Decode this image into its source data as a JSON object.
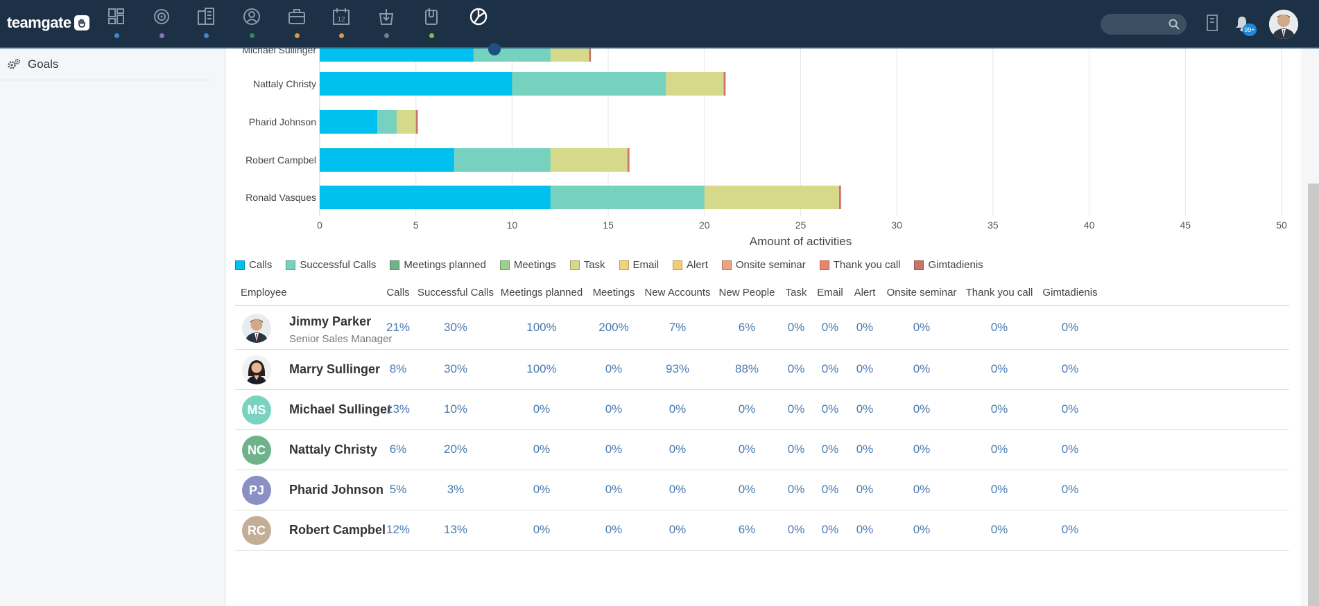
{
  "app": {
    "logo": "teamgate",
    "notifications": "99+"
  },
  "nav": {
    "icons": [
      {
        "name": "dashboard-icon",
        "dot": "#3f86d6"
      },
      {
        "name": "target-icon",
        "dot": "#8a74b8"
      },
      {
        "name": "companies-icon",
        "dot": "#3f86d6"
      },
      {
        "name": "people-icon",
        "dot": "#2e8a5b"
      },
      {
        "name": "deals-icon",
        "dot": "#d99a3e"
      },
      {
        "name": "calendar-icon",
        "dot": "#d99a3e"
      },
      {
        "name": "import-icon",
        "dot": "#7b7d85"
      },
      {
        "name": "documents-icon",
        "dot": "#7bbf4a"
      },
      {
        "name": "reports-icon",
        "dot": ""
      }
    ],
    "calendar_day": "12"
  },
  "sidebar": {
    "items": [
      {
        "label": "Goals",
        "icon": "gears-icon"
      }
    ]
  },
  "chart_data": {
    "type": "bar",
    "orientation": "horizontal",
    "stacked": true,
    "categories": [
      "Michael Sullinger",
      "Nattaly Christy",
      "Pharid Johnson",
      "Robert Campbel",
      "Ronald Vasques"
    ],
    "category_labels": [
      "Michael Sullinger",
      "Nattaly Christy",
      "Pharid Johnson",
      "Robert Campbel",
      "Ronald Vasques"
    ],
    "series": [
      {
        "name": "Calls",
        "color": "#00c0ef",
        "values": [
          8,
          10,
          3,
          7,
          12
        ]
      },
      {
        "name": "Successful Calls",
        "color": "#76d1be",
        "values": [
          4,
          8,
          1,
          5,
          8
        ]
      },
      {
        "name": "Meetings planned",
        "color": "#6fb38a",
        "values": [
          0,
          0,
          0,
          0,
          0
        ]
      },
      {
        "name": "Meetings",
        "color": "#9ccf8f",
        "values": [
          0,
          0,
          0,
          0,
          0
        ]
      },
      {
        "name": "Task",
        "color": "#d7d98a",
        "values": [
          2,
          3,
          1,
          4,
          7
        ]
      },
      {
        "name": "Email",
        "color": "#f3d27d",
        "values": [
          0,
          0,
          0,
          0,
          0
        ]
      },
      {
        "name": "Alert",
        "color": "#f1ce73",
        "values": [
          0,
          0,
          0,
          0,
          0
        ]
      },
      {
        "name": "Onsite seminar",
        "color": "#eda383",
        "values": [
          0,
          0,
          0,
          0,
          0
        ]
      },
      {
        "name": "Thank you call",
        "color": "#e8856e",
        "values": [
          0,
          0,
          0,
          0,
          0
        ]
      },
      {
        "name": "Gimtadienis",
        "color": "#c9736a",
        "values": [
          0.1,
          0.1,
          0.1,
          0.1,
          0.1
        ]
      }
    ],
    "xlim": [
      0,
      50
    ],
    "xticks": [
      "0",
      "5",
      "10",
      "15",
      "20",
      "25",
      "30",
      "35",
      "40",
      "45",
      "50"
    ],
    "xlabel": "Amount of activities",
    "grid": true,
    "legend_position": "bottom-left"
  },
  "table": {
    "columns": [
      "Employee",
      "Calls",
      "Successful Calls",
      "Meetings planned",
      "Meetings",
      "New Accounts",
      "New People",
      "Task",
      "Email",
      "Alert",
      "Onsite seminar",
      "Thank you call",
      "Gimtadienis"
    ],
    "rows": [
      {
        "name": "Jimmy Parker",
        "title": "Senior Sales Manager",
        "initials": "",
        "avatar_color": "",
        "values": [
          "21%",
          "30%",
          "100%",
          "200%",
          "7%",
          "6%",
          "0%",
          "0%",
          "0%",
          "0%",
          "0%",
          "0%"
        ]
      },
      {
        "name": "Marry Sullinger",
        "title": "",
        "initials": "",
        "avatar_color": "",
        "values": [
          "8%",
          "30%",
          "100%",
          "0%",
          "93%",
          "88%",
          "0%",
          "0%",
          "0%",
          "0%",
          "0%",
          "0%"
        ]
      },
      {
        "name": "Michael Sullinger",
        "title": "",
        "initials": "MS",
        "avatar_color": "#7ad3c1",
        "values": [
          "13%",
          "10%",
          "0%",
          "0%",
          "0%",
          "0%",
          "0%",
          "0%",
          "0%",
          "0%",
          "0%",
          "0%"
        ]
      },
      {
        "name": "Nattaly Christy",
        "title": "",
        "initials": "NC",
        "avatar_color": "#6fb38a",
        "values": [
          "6%",
          "20%",
          "0%",
          "0%",
          "0%",
          "0%",
          "0%",
          "0%",
          "0%",
          "0%",
          "0%",
          "0%"
        ]
      },
      {
        "name": "Pharid Johnson",
        "title": "",
        "initials": "PJ",
        "avatar_color": "#8a8fc4",
        "values": [
          "5%",
          "3%",
          "0%",
          "0%",
          "0%",
          "0%",
          "0%",
          "0%",
          "0%",
          "0%",
          "0%",
          "0%"
        ]
      },
      {
        "name": "Robert Campbel",
        "title": "",
        "initials": "RC",
        "avatar_color": "#c4ae98",
        "values": [
          "12%",
          "13%",
          "0%",
          "0%",
          "0%",
          "6%",
          "0%",
          "0%",
          "0%",
          "0%",
          "0%",
          "0%"
        ]
      }
    ]
  }
}
